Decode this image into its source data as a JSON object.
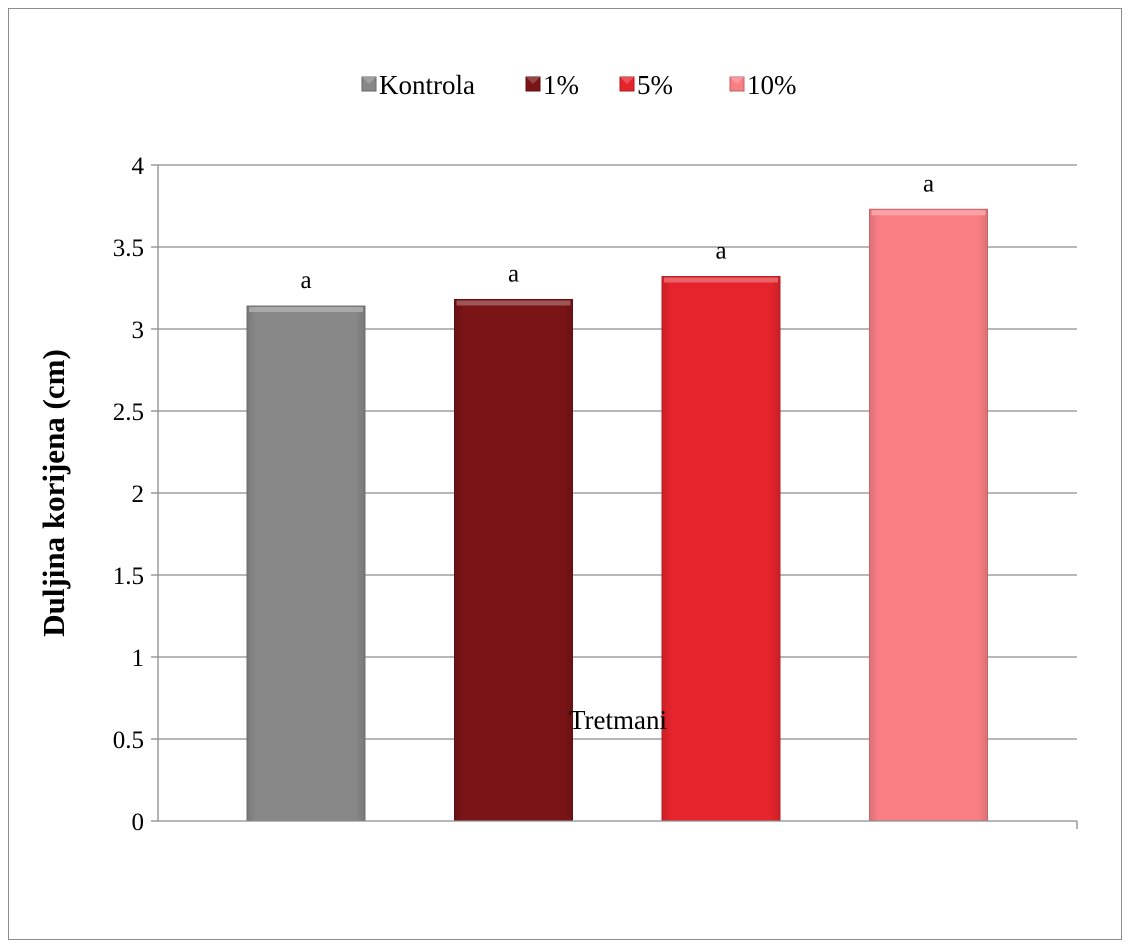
{
  "chart_data": {
    "type": "bar",
    "categories": [
      "Kontrola",
      "1%",
      "5%",
      "10%"
    ],
    "values": [
      3.14,
      3.18,
      3.32,
      3.73
    ],
    "data_labels": [
      "a",
      "a",
      "a",
      "a"
    ],
    "colors": [
      "#888888",
      "#7a1417",
      "#e5242c",
      "#f97f85"
    ],
    "title": "",
    "xlabel": "Tretmani",
    "ylabel": "Duljina korijena (cm)",
    "ylim": [
      0,
      4
    ],
    "yticks": [
      0,
      0.5,
      1,
      1.5,
      2,
      2.5,
      3,
      3.5,
      4
    ],
    "ytick_labels": [
      "0",
      "0.5",
      "1",
      "1.5",
      "2",
      "2.5",
      "3",
      "3.5",
      "4"
    ],
    "grid": true,
    "legend": {
      "placement": "top",
      "entries": [
        "Kontrola",
        "1%",
        "5%",
        "10%"
      ]
    }
  }
}
